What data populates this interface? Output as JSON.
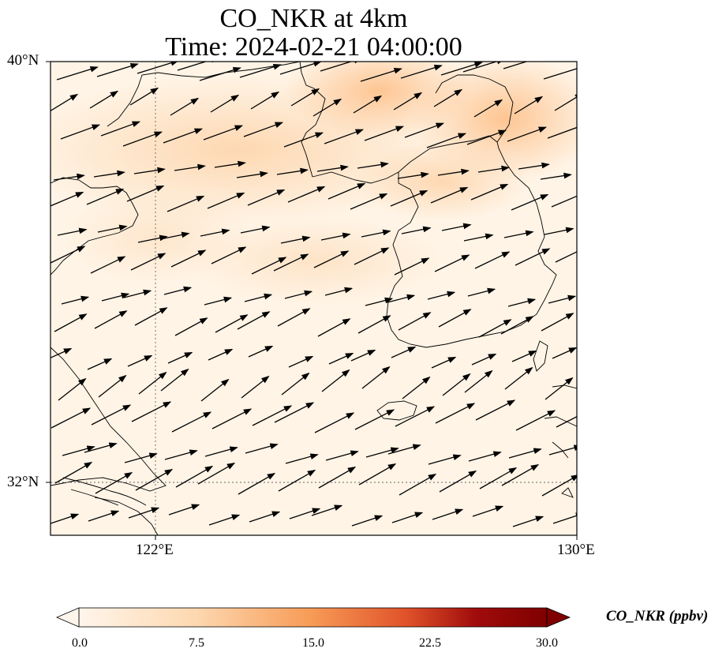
{
  "title": {
    "line1": "CO_NKR at 4km",
    "line2": "Time: 2024-02-21 04:00:00"
  },
  "map": {
    "lon_range": [
      119,
      130
    ],
    "lat_range": [
      31,
      40
    ],
    "gridlines": {
      "lon": [
        122
      ],
      "lat": [
        32
      ],
      "style": "dotted"
    },
    "lat_ticks": [
      {
        "value": 40,
        "label": "40°N"
      },
      {
        "value": 32,
        "label": "32°N"
      }
    ],
    "lon_ticks": [
      {
        "value": 122,
        "label": "122°E"
      },
      {
        "value": 130,
        "label": "130°E"
      }
    ],
    "wind_vectors": "predominantly westerly to west-southwesterly flow",
    "colors": {
      "low": "#fff5eb",
      "field": "#fde3c4",
      "high": "#fdc591",
      "coast": "#000000",
      "arrow": "#000000"
    }
  },
  "colorbar": {
    "cmap": "Oranges-to-darkred",
    "ticks": [
      "0.0",
      "7.5",
      "15.0",
      "22.5",
      "30.0"
    ],
    "label": "CO_NKR (ppbv)",
    "extend": "both"
  }
}
